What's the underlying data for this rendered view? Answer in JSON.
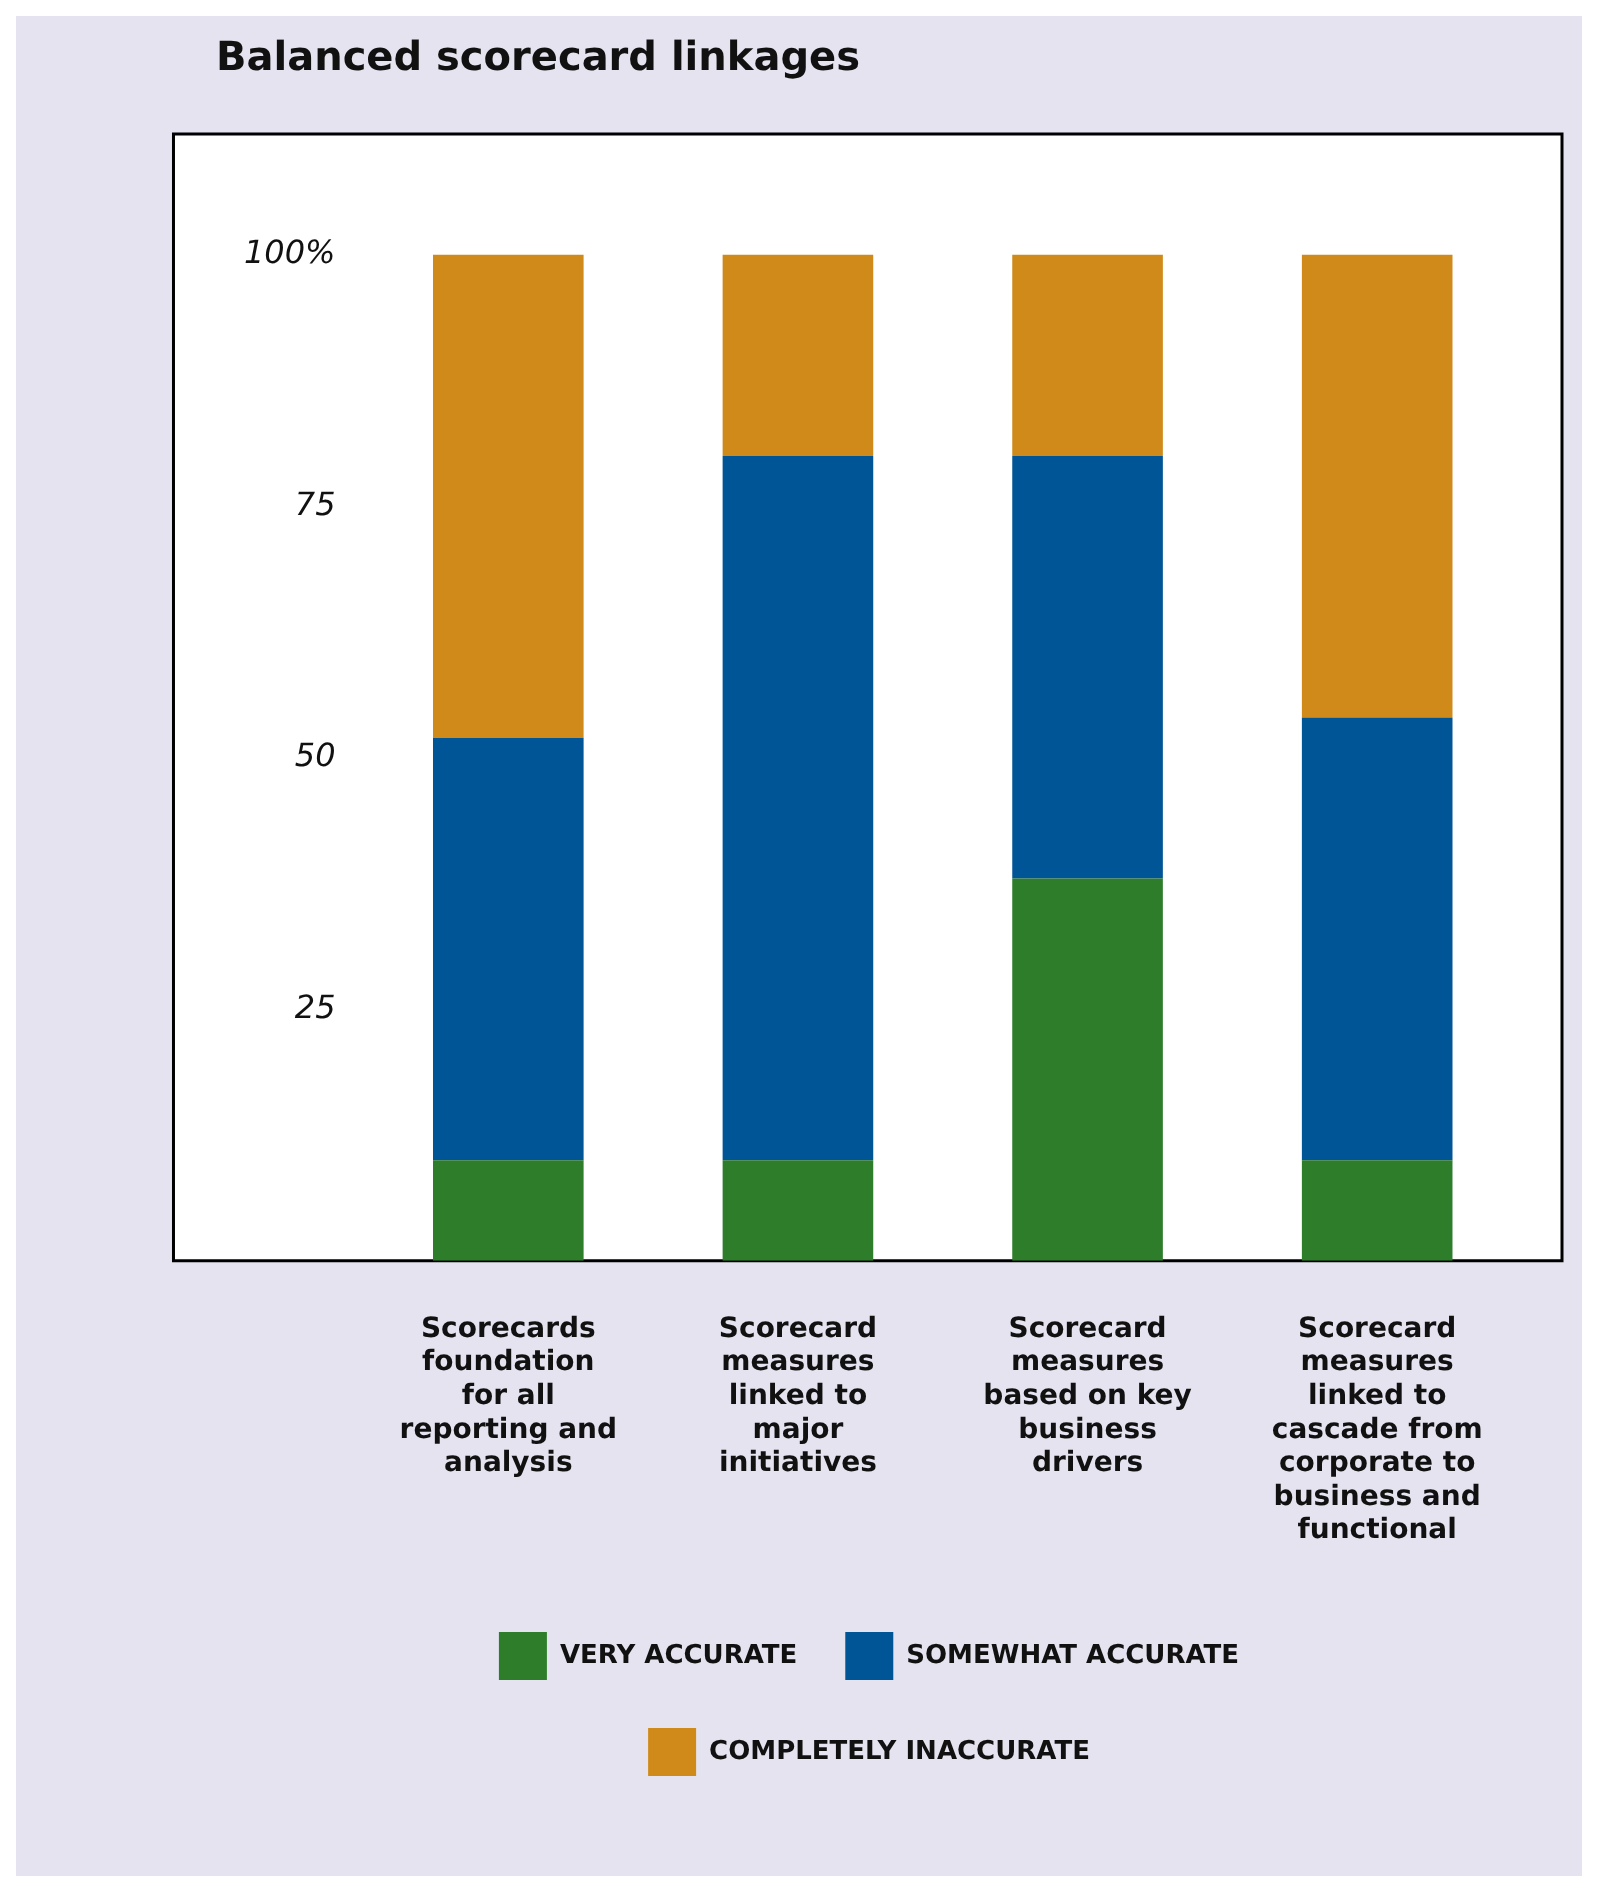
{
  "chart_data": {
    "type": "bar",
    "title": "Balanced scorecard linkages",
    "categories": [
      "Scorecards foundation for all reporting and analysis",
      "Scorecard measures linked to major initiatives",
      "Scorecard measures based on key business drivers",
      "Scorecard measures linked to cascade from corporate to business and functional"
    ],
    "stacked": true,
    "series": [
      {
        "name": "VERY ACCURATE",
        "color": "#2e7d2b",
        "values": [
          10,
          10,
          38,
          10
        ]
      },
      {
        "name": "SOMEWHAT ACCURATE",
        "color": "#005596",
        "values": [
          42,
          70,
          42,
          44
        ]
      },
      {
        "name": "COMPLETELY INACCURATE",
        "color": "#d08a1a",
        "values": [
          48,
          20,
          20,
          46
        ]
      }
    ],
    "ylim": [
      0,
      112
    ],
    "yticks": [
      25,
      50,
      75,
      {
        "value": 100,
        "label": "100%"
      }
    ],
    "legend": "bottom"
  }
}
